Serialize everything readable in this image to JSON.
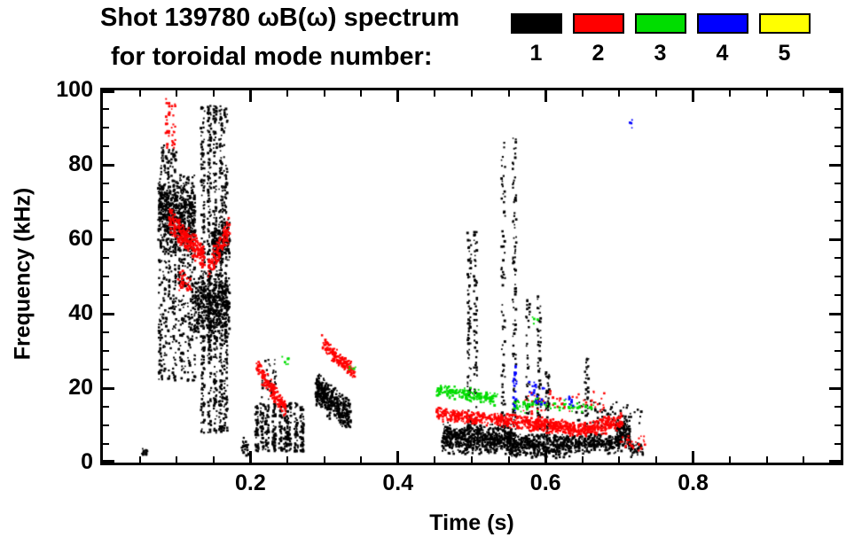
{
  "header": {
    "title_line1": "Shot 139780 ωB(ω) spectrum",
    "title_line2": "for toroidal mode number:"
  },
  "chart_data": {
    "type": "scatter",
    "title": "Shot 139780 ωB(ω) spectrum for toroidal mode number",
    "xlabel": "Time (s)",
    "ylabel": "Frequency (kHz)",
    "xlim": [
      0,
      1.0
    ],
    "ylim": [
      0,
      100
    ],
    "grid": false,
    "legend_position": "top-right",
    "x_major_ticks": [
      0.2,
      0.4,
      0.6,
      0.8
    ],
    "x_tick_labels": [
      "0.2",
      "0.4",
      "0.6",
      "0.8"
    ],
    "x_minor_step": 0.05,
    "y_major_ticks": [
      0,
      20,
      40,
      60,
      80,
      100
    ],
    "y_tick_labels": [
      "0",
      "20",
      "40",
      "60",
      "80",
      "100"
    ],
    "y_minor_step": 5,
    "series": [
      {
        "name": "1",
        "color": "#000000",
        "clusters": [
          {
            "type": "blob",
            "t": [
              0.048,
              0.062
            ],
            "f": [
              1,
              4
            ],
            "n": 15
          },
          {
            "type": "blob",
            "t": [
              0.075,
              0.125
            ],
            "f": [
              55,
              78
            ],
            "n": 750
          },
          {
            "type": "vstreaks",
            "t": [
              0.076,
              0.124
            ],
            "f": [
              22,
              58
            ],
            "n": 380,
            "streaks": 8
          },
          {
            "type": "blob",
            "t": [
              0.078,
              0.1
            ],
            "f": [
              76,
              86
            ],
            "n": 60
          },
          {
            "type": "vstreaks",
            "t": [
              0.134,
              0.168
            ],
            "f": [
              8,
              96
            ],
            "n": 900,
            "streaks": 5
          },
          {
            "type": "blob",
            "t": [
              0.125,
              0.172
            ],
            "f": [
              33,
              52
            ],
            "n": 450
          },
          {
            "type": "blob",
            "t": [
              0.148,
              0.172
            ],
            "f": [
              53,
              66
            ],
            "n": 160
          },
          {
            "type": "blob",
            "t": [
              0.188,
              0.198
            ],
            "f": [
              1,
              8
            ],
            "n": 25
          },
          {
            "type": "vstreaks",
            "t": [
              0.21,
              0.268
            ],
            "f": [
              3,
              16
            ],
            "n": 420,
            "streaks": 9
          },
          {
            "type": "blob",
            "t": [
              0.215,
              0.235
            ],
            "f": [
              15,
              30
            ],
            "n": 40
          },
          {
            "type": "band",
            "t": [
              0.288,
              0.336
            ],
            "f0": 20,
            "f1": 12,
            "th": 5,
            "n": 420
          },
          {
            "type": "blob",
            "t": [
              0.46,
              0.555
            ],
            "f": [
              2,
              11
            ],
            "n": 650
          },
          {
            "type": "blob",
            "t": [
              0.55,
              0.635
            ],
            "f": [
              1,
              8
            ],
            "n": 480
          },
          {
            "type": "blob",
            "t": [
              0.635,
              0.7
            ],
            "f": [
              2,
              8
            ],
            "n": 260
          },
          {
            "type": "blob",
            "t": [
              0.695,
              0.715
            ],
            "f": [
              3,
              13
            ],
            "n": 160
          },
          {
            "type": "vstreaks",
            "t": [
              0.497,
              0.506
            ],
            "f": [
              5,
              62
            ],
            "n": 150,
            "streaks": 2
          },
          {
            "type": "vstreaks",
            "t": [
              0.543,
              0.557
            ],
            "f": [
              5,
              88
            ],
            "n": 180,
            "streaks": 2
          },
          {
            "type": "vstreaks",
            "t": [
              0.578,
              0.592
            ],
            "f": [
              5,
              45
            ],
            "n": 100,
            "streaks": 2
          },
          {
            "type": "vstreaks",
            "t": [
              0.599,
              0.606
            ],
            "f": [
              5,
              25
            ],
            "n": 45,
            "streaks": 1
          },
          {
            "type": "vstreaks",
            "t": [
              0.652,
              0.66
            ],
            "f": [
              8,
              28
            ],
            "n": 35,
            "streaks": 1
          },
          {
            "type": "blob",
            "t": [
              0.64,
              0.73
            ],
            "f": [
              9,
              17
            ],
            "n": 55
          },
          {
            "type": "blob",
            "t": [
              0.715,
              0.732
            ],
            "f": [
              1,
              6
            ],
            "n": 40
          }
        ]
      },
      {
        "name": "2",
        "color": "#ff0000",
        "clusters": [
          {
            "type": "vstreaks",
            "t": [
              0.088,
              0.097
            ],
            "f": [
              84,
              98
            ],
            "n": 40,
            "streaks": 2
          },
          {
            "type": "band",
            "t": [
              0.09,
              0.138
            ],
            "f0": 65,
            "f1": 55,
            "th": 4,
            "n": 260
          },
          {
            "type": "blob",
            "t": [
              0.1,
              0.12
            ],
            "f": [
              45,
              52
            ],
            "n": 35
          },
          {
            "type": "band",
            "t": [
              0.142,
              0.172
            ],
            "f0": 52,
            "f1": 63,
            "th": 4,
            "n": 130
          },
          {
            "type": "band",
            "t": [
              0.208,
              0.248
            ],
            "f0": 26,
            "f1": 14,
            "th": 3,
            "n": 170
          },
          {
            "type": "band",
            "t": [
              0.297,
              0.342
            ],
            "f0": 32,
            "f1": 24,
            "th": 2.5,
            "n": 150
          },
          {
            "type": "band",
            "t": [
              0.452,
              0.56
            ],
            "f0": 13,
            "f1": 11,
            "th": 2,
            "n": 320
          },
          {
            "type": "band",
            "t": [
              0.56,
              0.66
            ],
            "f0": 11,
            "f1": 8.5,
            "th": 2.2,
            "n": 380
          },
          {
            "type": "band",
            "t": [
              0.66,
              0.705
            ],
            "f0": 9,
            "f1": 11,
            "th": 2.5,
            "n": 160
          },
          {
            "type": "blob",
            "t": [
              0.57,
              0.68
            ],
            "f": [
              12,
              20
            ],
            "n": 55
          },
          {
            "type": "blob",
            "t": [
              0.7,
              0.735
            ],
            "f": [
              3,
              8
            ],
            "n": 30
          }
        ]
      },
      {
        "name": "3",
        "color": "#00dd00",
        "clusters": [
          {
            "type": "band",
            "t": [
              0.452,
              0.535
            ],
            "f0": 19.5,
            "f1": 17,
            "th": 2,
            "n": 190
          },
          {
            "type": "blob",
            "t": [
              0.555,
              0.605
            ],
            "f": [
              13,
              18
            ],
            "n": 45
          },
          {
            "type": "blob",
            "t": [
              0.605,
              0.665
            ],
            "f": [
              13,
              17
            ],
            "n": 35
          },
          {
            "type": "blob",
            "t": [
              0.24,
              0.252
            ],
            "f": [
              26,
              29
            ],
            "n": 6
          },
          {
            "type": "blob",
            "t": [
              0.33,
              0.345
            ],
            "f": [
              24,
              27
            ],
            "n": 5
          },
          {
            "type": "blob",
            "t": [
              0.582,
              0.59
            ],
            "f": [
              37,
              40
            ],
            "n": 4
          }
        ]
      },
      {
        "name": "4",
        "color": "#0000ff",
        "clusters": [
          {
            "type": "vstreaks",
            "t": [
              0.556,
              0.562
            ],
            "f": [
              14,
              26
            ],
            "n": 26,
            "streaks": 1
          },
          {
            "type": "blob",
            "t": [
              0.578,
              0.6
            ],
            "f": [
              14,
              23
            ],
            "n": 24
          },
          {
            "type": "blob",
            "t": [
              0.625,
              0.64
            ],
            "f": [
              15,
              19
            ],
            "n": 10
          },
          {
            "type": "blob",
            "t": [
              0.712,
              0.718
            ],
            "f": [
              89,
              93
            ],
            "n": 4
          }
        ]
      },
      {
        "name": "5",
        "color": "#ffff00",
        "clusters": []
      }
    ]
  }
}
